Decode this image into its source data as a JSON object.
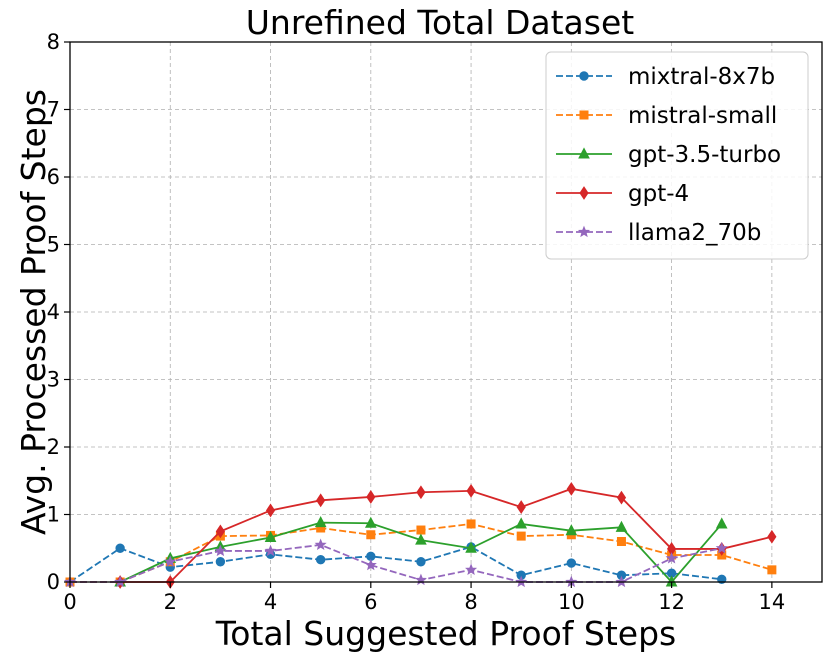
{
  "chart_data": {
    "type": "line",
    "title": "Unrefined Total Dataset",
    "xlabel": "Total Suggested Proof Steps",
    "ylabel": "Avg. Processed Proof Steps",
    "xlim": [
      0,
      15
    ],
    "ylim": [
      0,
      8
    ],
    "xticks": [
      0,
      2,
      4,
      6,
      8,
      10,
      12,
      14
    ],
    "yticks": [
      0,
      1,
      2,
      3,
      4,
      5,
      6,
      7,
      8
    ],
    "grid": true,
    "legend_position": "top-right",
    "series": [
      {
        "name": "mixtral-8x7b",
        "color": "#1f77b4",
        "dashed": true,
        "marker": "circle",
        "x": [
          0,
          1,
          2,
          3,
          4,
          5,
          6,
          7,
          8,
          9,
          10,
          11,
          12,
          13
        ],
        "y": [
          0.0,
          0.5,
          0.22,
          0.3,
          0.41,
          0.33,
          0.38,
          0.3,
          0.52,
          0.1,
          0.28,
          0.1,
          0.13,
          0.04
        ]
      },
      {
        "name": "mistral-small",
        "color": "#ff7f0e",
        "dashed": true,
        "marker": "square",
        "x": [
          0,
          1,
          2,
          3,
          4,
          5,
          6,
          7,
          8,
          9,
          10,
          11,
          12,
          13,
          14
        ],
        "y": [
          0.0,
          0.0,
          0.3,
          0.68,
          0.69,
          0.8,
          0.7,
          0.77,
          0.86,
          0.68,
          0.7,
          0.6,
          0.4,
          0.4,
          0.18
        ]
      },
      {
        "name": "gpt-3.5-turbo",
        "color": "#2ca02c",
        "dashed": false,
        "marker": "triangle",
        "x": [
          1,
          2,
          3,
          4,
          5,
          6,
          7,
          8,
          9,
          10,
          11,
          12,
          13
        ],
        "y": [
          0.0,
          0.35,
          0.52,
          0.66,
          0.88,
          0.87,
          0.62,
          0.5,
          0.86,
          0.76,
          0.81,
          0.0,
          0.86
        ]
      },
      {
        "name": "gpt-4",
        "color": "#d62728",
        "dashed": false,
        "marker": "diamond",
        "x": [
          1,
          2,
          3,
          4,
          5,
          6,
          7,
          8,
          9,
          10,
          11,
          12,
          13,
          14
        ],
        "y": [
          0.0,
          0.0,
          0.75,
          1.06,
          1.21,
          1.26,
          1.33,
          1.35,
          1.11,
          1.38,
          1.25,
          0.49,
          0.49,
          0.67
        ]
      },
      {
        "name": "llama2_70b",
        "color": "#9467bd",
        "dashed": true,
        "marker": "star",
        "x": [
          0,
          1,
          2,
          3,
          4,
          5,
          6,
          7,
          8,
          9,
          10,
          11,
          12,
          13
        ],
        "y": [
          0.0,
          0.0,
          0.3,
          0.46,
          0.46,
          0.55,
          0.25,
          0.03,
          0.18,
          0.0,
          0.0,
          0.0,
          0.35,
          0.5
        ]
      }
    ]
  }
}
